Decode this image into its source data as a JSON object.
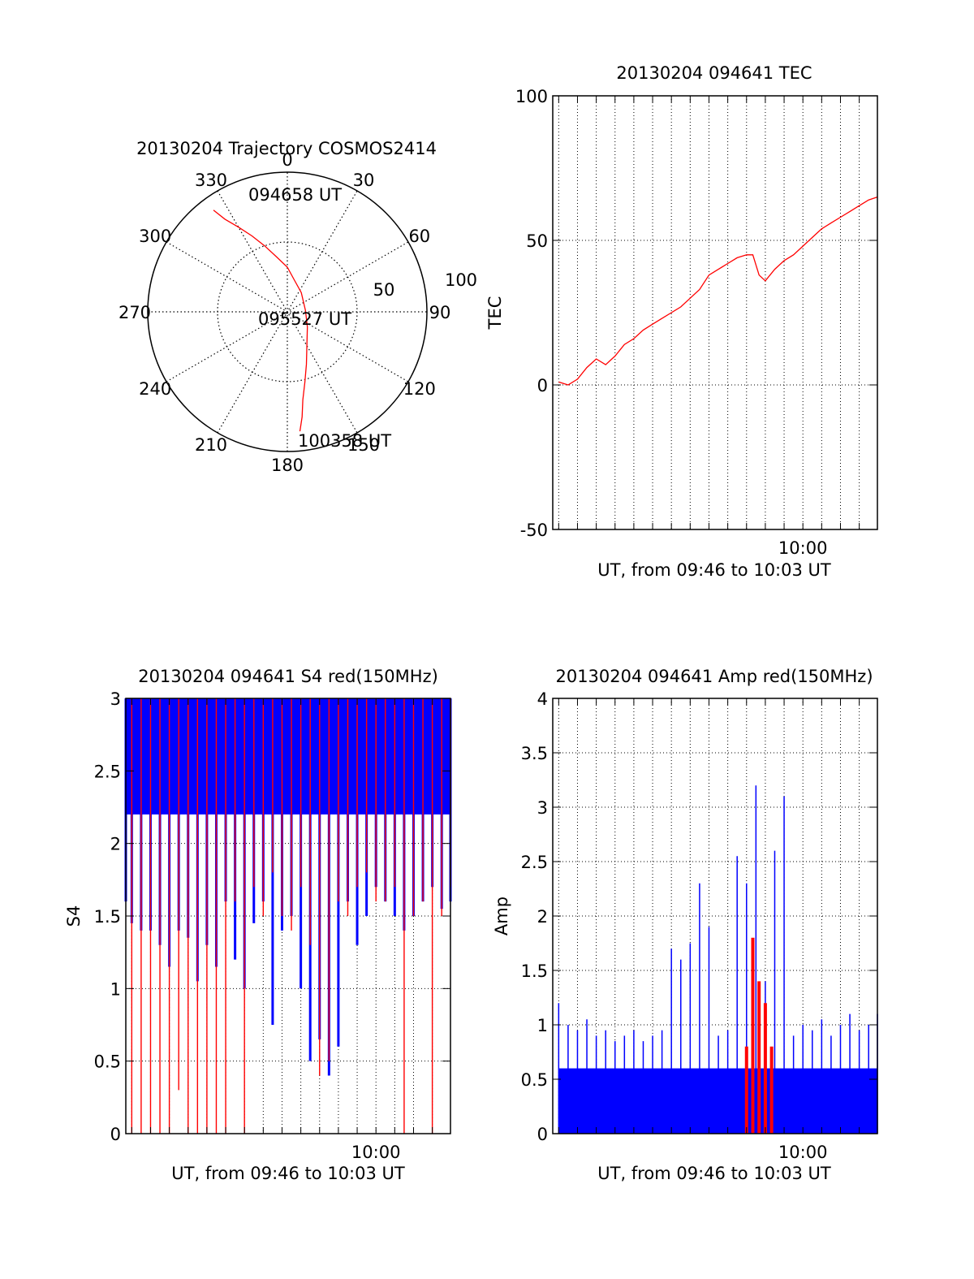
{
  "chart_data": [
    {
      "id": "trajectory",
      "type": "polar",
      "title": "20130204 Trajectory COSMOS2414",
      "angle_labels": [
        "0",
        "30",
        "60",
        "90",
        "120",
        "150",
        "180",
        "210",
        "240",
        "270",
        "300",
        "330"
      ],
      "radius_labels": [
        "50",
        "100"
      ],
      "rlim": [
        0,
        100
      ],
      "grid": true,
      "start_label": "094658 UT",
      "mid_label": "095527 UT",
      "end_label": "100358 UT",
      "series": [
        {
          "color": "#ff0000",
          "points": [
            [
              -36,
              90
            ],
            [
              -34,
              80
            ],
            [
              -30,
              70
            ],
            [
              -25,
              60
            ],
            [
              -19,
              50
            ],
            [
              -11,
              40
            ],
            [
              0,
              32
            ],
            [
              11,
              24
            ],
            [
              36,
              17
            ],
            [
              85,
              13
            ],
            [
              127,
              18
            ],
            [
              150,
              28
            ],
            [
              160,
              40
            ],
            [
              166,
              52
            ],
            [
              170,
              64
            ],
            [
              172,
              76
            ],
            [
              174,
              86
            ]
          ]
        }
      ]
    },
    {
      "id": "tec",
      "type": "line",
      "title": "20130204 094641 TEC",
      "xlabel": "UT, from 09:46 to 10:03 UT",
      "ylabel": "TEC",
      "ylim": [
        -50,
        100
      ],
      "yticks": [
        "-50",
        "0",
        "50",
        "100"
      ],
      "xlim": [
        "09:46:41",
        "10:03:58"
      ],
      "xtick_labels": [
        {
          "time": "10:00",
          "label": "10:00"
        }
      ],
      "grid": true,
      "series": [
        {
          "color": "#ff0000",
          "x": [
            "09:47:00",
            "09:47:30",
            "09:48:00",
            "09:48:30",
            "09:49:00",
            "09:49:30",
            "09:50:00",
            "09:50:30",
            "09:51:00",
            "09:51:30",
            "09:52:00",
            "09:52:30",
            "09:53:00",
            "09:53:30",
            "09:54:00",
            "09:54:30",
            "09:55:00",
            "09:55:30",
            "09:56:00",
            "09:56:30",
            "09:57:00",
            "09:57:20",
            "09:57:40",
            "09:58:00",
            "09:58:30",
            "09:59:00",
            "09:59:30",
            "10:00:00",
            "10:00:30",
            "10:01:00",
            "10:01:30",
            "10:02:00",
            "10:02:30",
            "10:03:00",
            "10:03:30",
            "10:03:58"
          ],
          "y": [
            1,
            0,
            2,
            6,
            9,
            7,
            10,
            14,
            16,
            19,
            21,
            23,
            25,
            27,
            30,
            33,
            38,
            40,
            42,
            44,
            45,
            45,
            38,
            36,
            40,
            43,
            45,
            48,
            51,
            54,
            56,
            58,
            60,
            62,
            64,
            65
          ]
        }
      ]
    },
    {
      "id": "s4",
      "type": "line",
      "title": "20130204 094641 S4 red(150MHz)",
      "xlabel": "UT, from 09:46 to 10:03 UT",
      "ylabel": "S4",
      "ylim": [
        0,
        3
      ],
      "yticks": [
        "0",
        "0.5",
        "1",
        "1.5",
        "2",
        "2.5",
        "3"
      ],
      "xlim": [
        "09:46:41",
        "10:03:58"
      ],
      "xtick_labels": [
        {
          "time": "10:00",
          "label": "10:00"
        }
      ],
      "grid": true,
      "series": [
        {
          "color": "#0000ff",
          "x": [
            "09:46:41",
            "09:47:00",
            "09:47:30",
            "09:48:00",
            "09:48:30",
            "09:49:00",
            "09:49:30",
            "09:50:00",
            "09:50:30",
            "09:51:00",
            "09:51:30",
            "09:52:00",
            "09:52:30",
            "09:53:00",
            "09:53:30",
            "09:54:00",
            "09:54:30",
            "09:55:00",
            "09:55:30",
            "09:56:00",
            "09:56:30",
            "09:57:00",
            "09:57:30",
            "09:58:00",
            "09:58:30",
            "09:59:00",
            "09:59:30",
            "10:00:00",
            "10:00:30",
            "10:01:00",
            "10:01:30",
            "10:02:00",
            "10:02:30",
            "10:03:00",
            "10:03:30",
            "10:03:58"
          ],
          "y": [
            1.6,
            1.45,
            1.4,
            1.4,
            1.3,
            1.15,
            1.4,
            1.35,
            1.05,
            1.3,
            1.15,
            1.6,
            1.2,
            1.0,
            1.45,
            1.6,
            0.75,
            1.4,
            1.5,
            1.0,
            0.5,
            0.65,
            0.4,
            0.6,
            1.6,
            1.3,
            1.5,
            1.7,
            1.6,
            1.5,
            1.4,
            1.5,
            1.6,
            1.7,
            1.55,
            1.6
          ]
        },
        {
          "color": "#ff0000",
          "x": [
            "09:47:00",
            "09:47:30",
            "09:48:00",
            "09:48:30",
            "09:49:00",
            "09:49:30",
            "09:50:00",
            "09:50:30",
            "09:51:00",
            "09:51:30",
            "09:52:00",
            "09:52:30",
            "09:53:00",
            "09:53:30",
            "09:54:00",
            "09:54:30",
            "09:55:00",
            "09:55:30",
            "09:56:00",
            "09:56:30",
            "09:57:00",
            "09:57:30",
            "09:58:00",
            "09:58:30",
            "09:59:00",
            "09:59:30",
            "10:00:00",
            "10:00:30",
            "10:01:00",
            "10:01:30",
            "10:02:00",
            "10:02:30",
            "10:03:00",
            "10:03:30",
            "10:03:58"
          ],
          "y": [
            0.0,
            0.0,
            0.0,
            0.0,
            0.0,
            0.3,
            0.0,
            0.0,
            0.0,
            0.0,
            0.0,
            1.6,
            0.0,
            1.7,
            1.5,
            1.8,
            1.5,
            1.4,
            1.7,
            1.3,
            0.4,
            0.5,
            1.6,
            1.5,
            1.7,
            1.8,
            1.6,
            1.6,
            1.7,
            0.0,
            1.5,
            1.6,
            0.0,
            1.5,
            1.7
          ]
        }
      ]
    },
    {
      "id": "amp",
      "type": "line",
      "title": "20130204 094641 Amp red(150MHz)",
      "xlabel": "UT, from 09:46 to 10:03 UT",
      "ylabel": "Amp",
      "ylim": [
        0,
        4
      ],
      "yticks": [
        "0",
        "0.5",
        "1",
        "1.5",
        "2",
        "2.5",
        "3",
        "3.5",
        "4"
      ],
      "xlim": [
        "09:46:41",
        "10:03:58"
      ],
      "xtick_labels": [
        {
          "time": "10:00",
          "label": "10:00"
        }
      ],
      "grid": true,
      "series": [
        {
          "color": "#0000ff",
          "x": [
            "09:47:00",
            "09:47:30",
            "09:48:00",
            "09:48:30",
            "09:49:00",
            "09:49:30",
            "09:50:00",
            "09:50:30",
            "09:51:00",
            "09:51:30",
            "09:52:00",
            "09:52:30",
            "09:53:00",
            "09:53:30",
            "09:54:00",
            "09:54:30",
            "09:55:00",
            "09:55:30",
            "09:56:00",
            "09:56:30",
            "09:57:00",
            "09:57:30",
            "09:58:00",
            "09:58:30",
            "09:59:00",
            "09:59:30",
            "10:00:00",
            "10:00:30",
            "10:01:00",
            "10:01:30",
            "10:02:00",
            "10:02:30",
            "10:03:00",
            "10:03:30",
            "10:03:58"
          ],
          "y": [
            1.2,
            1.0,
            0.95,
            1.05,
            0.9,
            0.95,
            0.85,
            0.9,
            0.95,
            0.85,
            0.9,
            0.95,
            1.7,
            1.6,
            1.75,
            2.3,
            1.9,
            0.9,
            0.95,
            2.55,
            2.3,
            3.2,
            1.4,
            2.6,
            3.1,
            0.9,
            1.0,
            0.95,
            1.05,
            0.9,
            1.0,
            1.1,
            0.95,
            1.0,
            1.1
          ]
        },
        {
          "color": "#ff0000",
          "x": [
            "09:57:00",
            "09:57:20",
            "09:57:40",
            "09:58:00",
            "09:58:20"
          ],
          "y": [
            0.8,
            1.8,
            1.4,
            1.2,
            0.8
          ]
        }
      ]
    }
  ]
}
